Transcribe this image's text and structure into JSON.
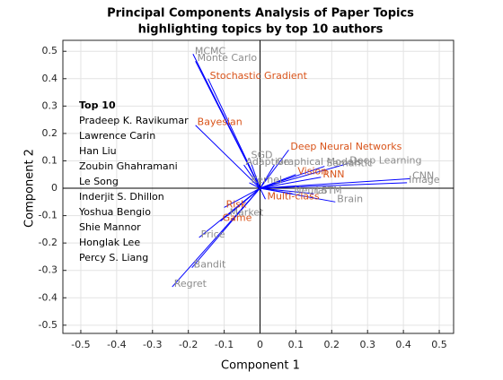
{
  "chart_data": {
    "type": "biplot",
    "title": [
      "Principal Components Analysis of Paper Topics",
      "highlighting topics by top 10 authors"
    ],
    "xlabel": "Component 1",
    "ylabel": "Component 2",
    "xlim": [
      -0.55,
      0.54
    ],
    "ylim": [
      -0.53,
      0.54
    ],
    "xticks": [
      -0.5,
      -0.4,
      -0.3,
      -0.2,
      -0.1,
      0,
      0.1,
      0.2,
      0.3,
      0.4,
      0.5
    ],
    "yticks": [
      -0.5,
      -0.4,
      -0.3,
      -0.2,
      -0.1,
      0,
      0.1,
      0.2,
      0.3,
      0.4,
      0.5
    ],
    "grid": true,
    "line_color": "#0000ff",
    "base_color": "#8c8c8c",
    "highlight_color": "#d95319",
    "labels": [
      "MCMC",
      "Monte Carlo",
      "Stochastic Gradient",
      "Bayesian",
      "SGD",
      "Adaptive",
      "Graphical Models",
      "Deep Neural Networks",
      "Semantic",
      "Deep Learning",
      "CNN",
      "Image",
      "Vision",
      "RNN",
      "LSTM",
      "Brain",
      "Kernel",
      "Neural",
      "Multi-class",
      "Risk",
      "Market",
      "Game",
      "Price",
      "Bandit",
      "Regret"
    ],
    "x": [
      -0.187,
      -0.18,
      -0.145,
      -0.18,
      -0.03,
      -0.045,
      0.04,
      0.08,
      0.18,
      0.245,
      0.42,
      0.41,
      0.1,
      0.17,
      0.15,
      0.21,
      -0.03,
      0.09,
      0.015,
      -0.1,
      -0.09,
      -0.11,
      -0.17,
      -0.19,
      -0.245
    ],
    "y": [
      0.49,
      0.464,
      0.4,
      0.23,
      0.11,
      0.085,
      0.085,
      0.14,
      0.08,
      0.09,
      0.035,
      0.02,
      0.05,
      0.04,
      -0.02,
      -0.05,
      0.02,
      -0.02,
      -0.04,
      -0.07,
      -0.1,
      -0.12,
      -0.18,
      -0.29,
      -0.36
    ],
    "highlighted": [
      false,
      false,
      true,
      true,
      false,
      false,
      false,
      true,
      false,
      false,
      false,
      false,
      true,
      true,
      false,
      false,
      false,
      false,
      true,
      true,
      false,
      true,
      false,
      false,
      false
    ],
    "legend_title": "Top 10",
    "authors": [
      "Pradeep K. Ravikumar",
      "Lawrence Carin",
      "Han Liu",
      "Zoubin Ghahramani",
      "Le Song",
      "Inderjit S. Dhillon",
      "Yoshua Bengio",
      "Shie Mannor",
      "Honglak Lee",
      "Percy S. Liang"
    ]
  }
}
